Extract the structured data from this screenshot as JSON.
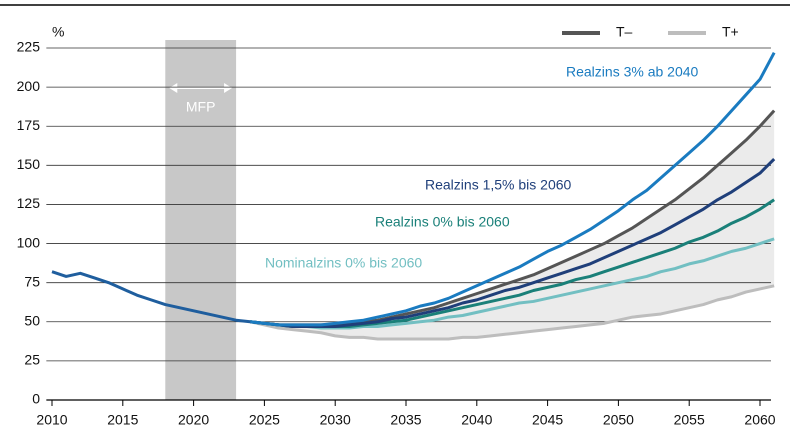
{
  "chart_data": {
    "type": "line",
    "y_unit": "%",
    "x": [
      2010,
      2011,
      2012,
      2013,
      2014,
      2015,
      2016,
      2017,
      2018,
      2019,
      2020,
      2021,
      2022,
      2023,
      2024,
      2025,
      2026,
      2027,
      2028,
      2029,
      2030,
      2031,
      2032,
      2033,
      2034,
      2035,
      2036,
      2037,
      2038,
      2039,
      2040,
      2041,
      2042,
      2043,
      2044,
      2045,
      2046,
      2047,
      2048,
      2049,
      2050,
      2051,
      2052,
      2053,
      2054,
      2055,
      2056,
      2057,
      2058,
      2059,
      2060,
      2061
    ],
    "series": [
      {
        "name": "T–",
        "color": "#555555",
        "values": [
          null,
          null,
          null,
          null,
          null,
          null,
          null,
          null,
          null,
          null,
          null,
          null,
          null,
          null,
          50,
          49,
          48,
          48,
          48,
          48,
          48,
          49,
          50,
          51,
          53,
          55,
          57,
          59,
          62,
          65,
          68,
          71,
          74,
          77,
          80,
          84,
          88,
          92,
          96,
          100,
          105,
          110,
          116,
          122,
          128,
          135,
          142,
          150,
          158,
          166,
          175,
          185
        ]
      },
      {
        "name": "T+",
        "color": "#bdbdbd",
        "values": [
          null,
          null,
          null,
          null,
          null,
          null,
          null,
          null,
          null,
          null,
          null,
          null,
          null,
          null,
          50,
          48,
          46,
          45,
          44,
          43,
          41,
          40,
          40,
          39,
          39,
          39,
          39,
          39,
          39,
          40,
          40,
          41,
          42,
          43,
          44,
          45,
          46,
          47,
          48,
          49,
          51,
          53,
          54,
          55,
          57,
          59,
          61,
          64,
          66,
          69,
          71,
          73
        ]
      },
      {
        "label": "Nominalzins 0% bis 2060",
        "color": "#72bfc2",
        "values": [
          null,
          null,
          null,
          null,
          null,
          null,
          null,
          null,
          null,
          null,
          null,
          null,
          null,
          null,
          50,
          49,
          48,
          47,
          47,
          46,
          46,
          46,
          47,
          47,
          48,
          49,
          50,
          51,
          53,
          54,
          56,
          58,
          60,
          62,
          63,
          65,
          67,
          69,
          71,
          73,
          75,
          77,
          79,
          82,
          84,
          87,
          89,
          92,
          95,
          97,
          100,
          103
        ]
      },
      {
        "label": "Realzins 0% bis 2060",
        "color": "#1a8079",
        "values": [
          null,
          null,
          null,
          null,
          null,
          null,
          null,
          null,
          null,
          null,
          null,
          null,
          null,
          null,
          50,
          49,
          48,
          47,
          47,
          47,
          47,
          47,
          48,
          49,
          50,
          51,
          53,
          55,
          57,
          59,
          61,
          63,
          65,
          67,
          70,
          72,
          74,
          77,
          79,
          82,
          85,
          88,
          91,
          94,
          97,
          101,
          104,
          108,
          113,
          117,
          122,
          128
        ]
      },
      {
        "label": "Realzins 1,5% bis 2060",
        "color": "#1f3f7a",
        "values": [
          null,
          null,
          null,
          null,
          null,
          null,
          null,
          null,
          null,
          null,
          null,
          null,
          null,
          null,
          50,
          49,
          48,
          47,
          47,
          47,
          47,
          48,
          49,
          50,
          52,
          53,
          55,
          57,
          59,
          62,
          64,
          67,
          70,
          72,
          75,
          78,
          81,
          84,
          87,
          91,
          95,
          99,
          103,
          107,
          112,
          117,
          122,
          128,
          133,
          139,
          145,
          154
        ]
      },
      {
        "label": "Realzins 3% ab 2040",
        "color": "#1a7bc0",
        "values": [
          null,
          null,
          null,
          null,
          null,
          null,
          null,
          null,
          null,
          null,
          null,
          null,
          null,
          null,
          50,
          49,
          48,
          48,
          48,
          48,
          49,
          50,
          51,
          53,
          55,
          57,
          60,
          62,
          65,
          69,
          73,
          77,
          81,
          85,
          90,
          95,
          99,
          104,
          109,
          115,
          121,
          128,
          134,
          142,
          150,
          158,
          166,
          175,
          185,
          195,
          205,
          222
        ]
      },
      {
        "color": "#1f5e9e",
        "values": [
          82,
          79,
          81,
          78,
          75,
          71,
          67,
          64,
          61,
          59,
          57,
          55,
          53,
          51,
          50,
          null,
          null,
          null,
          null,
          null,
          null,
          null,
          null,
          null,
          null,
          null,
          null,
          null,
          null,
          null,
          null,
          null,
          null,
          null,
          null,
          null,
          null,
          null,
          null,
          null,
          null,
          null,
          null,
          null,
          null,
          null,
          null,
          null,
          null,
          null,
          null,
          null
        ]
      }
    ],
    "band": {
      "between": [
        0,
        1
      ],
      "color": "#ebebeb"
    },
    "shaded_period": {
      "start": 2018,
      "end": 2023,
      "label": "MFP",
      "color": "#c8c8c8"
    },
    "xlim": [
      2009.6,
      2061.2
    ],
    "xticks": [
      2010,
      2015,
      2020,
      2025,
      2030,
      2035,
      2040,
      2045,
      2050,
      2055,
      2060
    ],
    "ylim": [
      0,
      225
    ],
    "yticks": [
      0,
      25,
      50,
      75,
      100,
      125,
      150,
      175,
      200,
      225
    ],
    "grid": true,
    "legend": "top-right"
  }
}
